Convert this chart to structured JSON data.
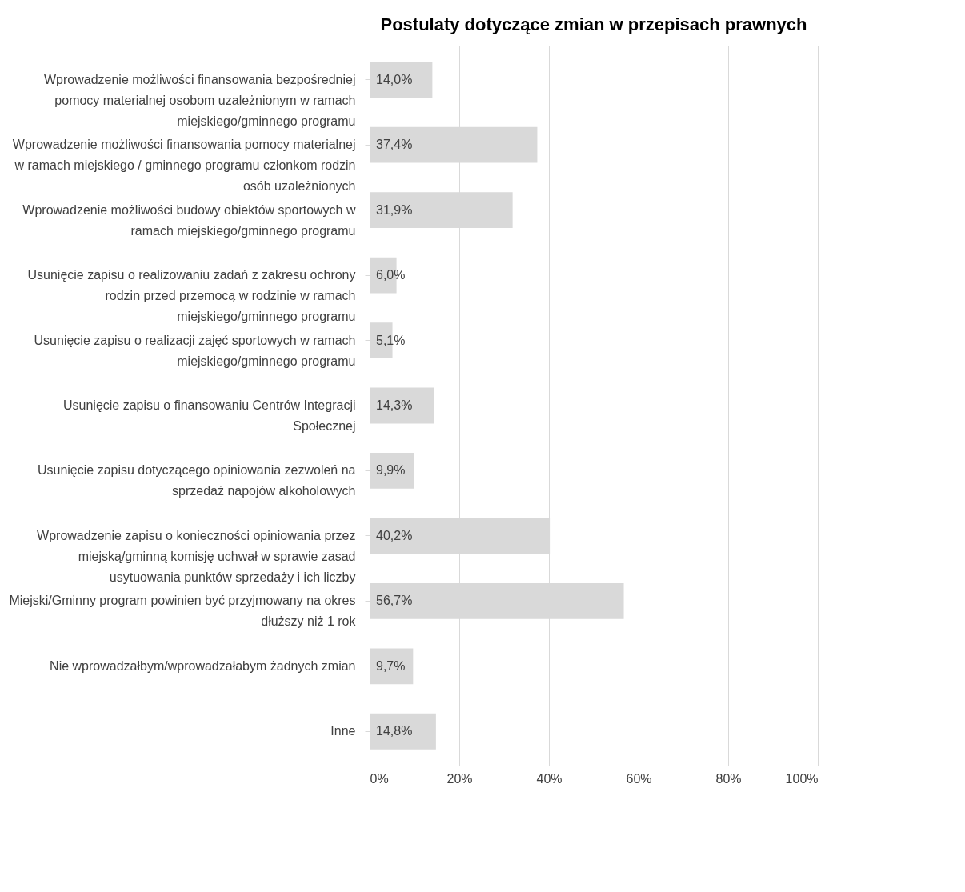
{
  "chart_data": {
    "type": "bar",
    "orientation": "horizontal",
    "title": "Postulaty dotyczące zmian w przepisach prawnych",
    "categories": [
      "Wprowadzenie możliwości finansowania bezpośredniej pomocy materialnej osobom uzależnionym w ramach miejskiego/gminnego programu",
      "Wprowadzenie możliwości finansowania pomocy materialnej w ramach miejskiego / gminnego programu członkom rodzin osób uzależnionych",
      "Wprowadzenie możliwości budowy obiektów sportowych w ramach miejskiego/gminnego programu",
      "Usunięcie zapisu o realizowaniu zadań z zakresu ochrony rodzin przed przemocą w rodzinie w ramach miejskiego/gminnego programu",
      "Usunięcie zapisu o realizacji zajęć sportowych w ramach miejskiego/gminnego programu",
      "Usunięcie zapisu o finansowaniu Centrów Integracji Społecznej",
      "Usunięcie zapisu dotyczącego opiniowania zezwoleń na sprzedaż napojów alkoholowych",
      "Wprowadzenie zapisu o konieczności opiniowania przez miejską/gminną komisję uchwał w sprawie zasad usytuowania punktów sprzedaży i ich liczby",
      "Miejski/Gminny program powinien być przyjmowany na okres dłuższy niż 1 rok",
      "Nie wprowadzałbym/wprowadzałabym żadnych zmian",
      "Inne"
    ],
    "values": [
      14.0,
      37.4,
      31.9,
      6.0,
      5.1,
      14.3,
      9.9,
      40.2,
      56.7,
      9.7,
      14.8
    ],
    "value_labels": [
      "14,0%",
      "37,4%",
      "31,9%",
      "6,0%",
      "5,1%",
      "14,3%",
      "9,9%",
      "40,2%",
      "56,7%",
      "9,7%",
      "14,8%"
    ],
    "color": "#d9d9d9",
    "xlim": [
      0,
      100
    ],
    "xticks": [
      {
        "value": 0,
        "label": "0%"
      },
      {
        "value": 20,
        "label": "20%"
      },
      {
        "value": 40,
        "label": "40%"
      },
      {
        "value": 60,
        "label": "60%"
      },
      {
        "value": 80,
        "label": "80%"
      },
      {
        "value": 100,
        "label": "100%"
      }
    ],
    "grid": "x"
  }
}
